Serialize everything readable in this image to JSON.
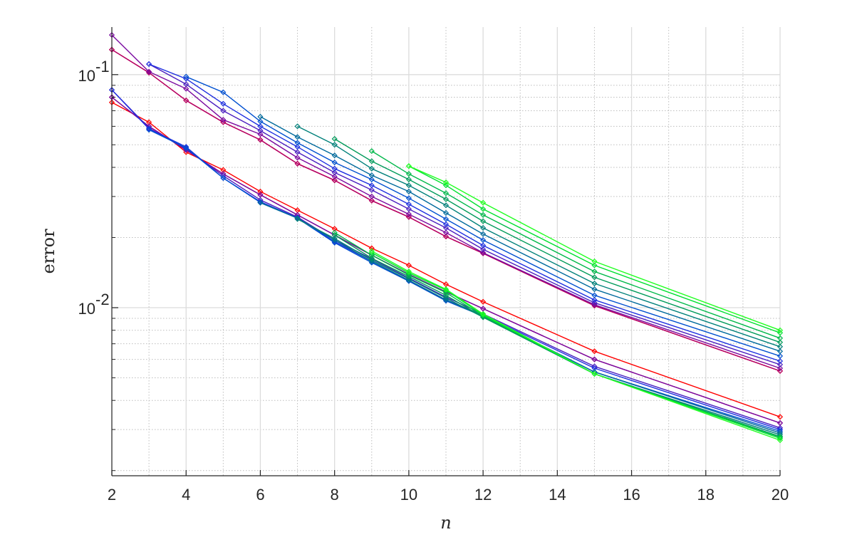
{
  "chart_data": {
    "type": "line",
    "xlabel": "n",
    "ylabel": "error",
    "y_scale": "log",
    "xlim": [
      2,
      20
    ],
    "ylim": [
      0.0019,
      0.16
    ],
    "grid": true,
    "minor_grid": true,
    "xticks": [
      2,
      4,
      6,
      8,
      10,
      12,
      14,
      16,
      18,
      20
    ],
    "xtick_labels": [
      "2",
      "4",
      "6",
      "8",
      "10",
      "12",
      "14",
      "16",
      "18",
      "20"
    ],
    "yticks": [
      {
        "value": 0.1,
        "base": "10",
        "exp": "-1"
      },
      {
        "value": 0.01,
        "base": "10",
        "exp": "-2"
      }
    ],
    "marker": "diamond",
    "series": [
      {
        "group": "upper",
        "color": "#ff0000",
        "x": [
          2,
          3,
          4,
          5,
          6,
          7,
          8,
          9,
          10,
          11,
          12,
          15,
          20
        ],
        "values": [
          0.128,
          0.102,
          0.0775,
          0.0625,
          0.0525,
          0.0415,
          0.0352,
          0.0288,
          0.0245,
          0.0202,
          0.0171,
          0.0102,
          0.00535
        ]
      },
      {
        "group": "upper",
        "color": "#b0006a",
        "x": [
          2,
          3,
          4,
          5,
          6,
          7,
          8,
          9,
          10,
          11,
          12,
          15,
          20
        ],
        "values": [
          0.128,
          0.102,
          0.0775,
          0.0625,
          0.0525,
          0.0415,
          0.0352,
          0.0288,
          0.0245,
          0.0202,
          0.0171,
          0.0102,
          0.00535
        ]
      },
      {
        "group": "upper",
        "color": "#7a0aa0",
        "x": [
          2,
          3,
          4,
          5,
          6,
          7,
          8,
          9,
          10,
          11,
          12,
          15,
          20
        ],
        "values": [
          0.148,
          0.103,
          0.087,
          0.064,
          0.0555,
          0.044,
          0.0365,
          0.03,
          0.0252,
          0.021,
          0.0172,
          0.0103,
          0.0055
        ]
      },
      {
        "group": "upper",
        "color": "#4b1fc0",
        "x": [
          3,
          4,
          5,
          6,
          7,
          8,
          9,
          10,
          11,
          12,
          15,
          20
        ],
        "values": [
          0.111,
          0.091,
          0.07,
          0.0575,
          0.0465,
          0.038,
          0.032,
          0.0265,
          0.022,
          0.0178,
          0.0105,
          0.0057
        ]
      },
      {
        "group": "upper",
        "color": "#1f30e0",
        "x": [
          3,
          4,
          5,
          6,
          7,
          8,
          9,
          10,
          11,
          12,
          15,
          20
        ],
        "values": [
          0.111,
          0.096,
          0.075,
          0.06,
          0.049,
          0.0395,
          0.0335,
          0.0278,
          0.0228,
          0.0185,
          0.0108,
          0.0059
        ]
      },
      {
        "group": "upper",
        "color": "#0050d0",
        "x": [
          4,
          5,
          6,
          7,
          8,
          9,
          10,
          11,
          12,
          15,
          20
        ],
        "values": [
          0.098,
          0.084,
          0.063,
          0.051,
          0.042,
          0.0355,
          0.0295,
          0.024,
          0.0195,
          0.0113,
          0.0062
        ]
      },
      {
        "group": "upper",
        "color": "#006a9c",
        "x": [
          6,
          7,
          8,
          9,
          10,
          11,
          12,
          15,
          20
        ],
        "values": [
          0.066,
          0.054,
          0.045,
          0.037,
          0.0315,
          0.0255,
          0.0207,
          0.012,
          0.0065
        ]
      },
      {
        "group": "upper",
        "color": "#00807a",
        "x": [
          7,
          8,
          9,
          10,
          11,
          12,
          15,
          20
        ],
        "values": [
          0.06,
          0.05,
          0.0395,
          0.0335,
          0.0275,
          0.022,
          0.0127,
          0.0068
        ]
      },
      {
        "group": "upper",
        "color": "#009a5a",
        "x": [
          8,
          9,
          10,
          11,
          12,
          15,
          20
        ],
        "values": [
          0.053,
          0.0425,
          0.0355,
          0.0292,
          0.0235,
          0.0135,
          0.0071
        ]
      },
      {
        "group": "upper",
        "color": "#00b84a",
        "x": [
          9,
          10,
          11,
          12,
          15,
          20
        ],
        "values": [
          0.047,
          0.0375,
          0.031,
          0.025,
          0.0143,
          0.0074
        ]
      },
      {
        "group": "upper",
        "color": "#00e030",
        "x": [
          10,
          11,
          12,
          15,
          20
        ],
        "values": [
          0.0405,
          0.0335,
          0.0265,
          0.0152,
          0.0078
        ]
      },
      {
        "group": "upper",
        "color": "#22ff22",
        "x": [
          10,
          11,
          12,
          15,
          20
        ],
        "values": [
          0.0405,
          0.0345,
          0.0282,
          0.0158,
          0.008
        ]
      },
      {
        "group": "lower",
        "color": "#ff0000",
        "x": [
          2,
          3,
          4,
          5,
          6,
          7,
          8,
          9,
          10,
          11,
          12,
          15,
          20
        ],
        "values": [
          0.076,
          0.0625,
          0.0465,
          0.039,
          0.0315,
          0.0262,
          0.0218,
          0.018,
          0.0152,
          0.0126,
          0.0106,
          0.0065,
          0.0034
        ]
      },
      {
        "group": "lower",
        "color": "#b0006a",
        "x": [
          2,
          3,
          4,
          5,
          6,
          7,
          8,
          9,
          10,
          11,
          12,
          15,
          20
        ],
        "values": [
          0.08,
          0.06,
          0.0475,
          0.0375,
          0.0305,
          0.025,
          0.0205,
          0.0168,
          0.0139,
          0.0117,
          0.0099,
          0.006,
          0.0032
        ]
      },
      {
        "group": "lower",
        "color": "#7a0aa0",
        "x": [
          2,
          3,
          4,
          5,
          6,
          7,
          8,
          9,
          10,
          11,
          12,
          15,
          20
        ],
        "values": [
          0.08,
          0.06,
          0.0475,
          0.0375,
          0.0305,
          0.025,
          0.0205,
          0.0168,
          0.0139,
          0.0117,
          0.0099,
          0.006,
          0.0032
        ]
      },
      {
        "group": "lower",
        "color": "#4b1fc0",
        "x": [
          2,
          3,
          4,
          5,
          6,
          7,
          8,
          9,
          10,
          11,
          12,
          15,
          20
        ],
        "values": [
          0.086,
          0.059,
          0.048,
          0.0368,
          0.029,
          0.0245,
          0.0195,
          0.0162,
          0.0134,
          0.0111,
          0.0094,
          0.0056,
          0.00305
        ]
      },
      {
        "group": "lower",
        "color": "#1f30e0",
        "x": [
          2,
          3,
          4,
          5,
          6,
          7,
          8,
          9,
          10,
          11,
          12,
          15,
          20
        ],
        "values": [
          0.086,
          0.0585,
          0.049,
          0.036,
          0.0285,
          0.0243,
          0.0192,
          0.0158,
          0.0131,
          0.0108,
          0.0093,
          0.0055,
          0.003
        ]
      },
      {
        "group": "lower",
        "color": "#0050d0",
        "x": [
          3,
          4,
          5,
          6,
          7,
          8,
          9,
          10,
          11,
          12,
          15,
          20
        ],
        "values": [
          0.058,
          0.0485,
          0.036,
          0.0283,
          0.0242,
          0.019,
          0.0156,
          0.013,
          0.0107,
          0.0092,
          0.0053,
          0.00295
        ]
      },
      {
        "group": "lower",
        "color": "#006a9c",
        "x": [
          6,
          7,
          8,
          9,
          10,
          11,
          12,
          15,
          20
        ],
        "values": [
          0.0282,
          0.0242,
          0.0195,
          0.0158,
          0.0131,
          0.0108,
          0.0092,
          0.0053,
          0.0029
        ]
      },
      {
        "group": "lower",
        "color": "#00807a",
        "x": [
          7,
          8,
          9,
          10,
          11,
          12,
          15,
          20
        ],
        "values": [
          0.024,
          0.0198,
          0.016,
          0.0133,
          0.011,
          0.0091,
          0.0052,
          0.00285
        ]
      },
      {
        "group": "lower",
        "color": "#009a5a",
        "x": [
          8,
          9,
          10,
          11,
          12,
          15,
          20
        ],
        "values": [
          0.0205,
          0.0163,
          0.0136,
          0.0113,
          0.0091,
          0.0052,
          0.0028
        ]
      },
      {
        "group": "lower",
        "color": "#00b84a",
        "x": [
          8,
          9,
          10,
          11,
          12,
          15,
          20
        ],
        "values": [
          0.021,
          0.0168,
          0.0138,
          0.0116,
          0.0092,
          0.0052,
          0.00278
        ]
      },
      {
        "group": "lower",
        "color": "#00e030",
        "x": [
          9,
          10,
          11,
          12,
          15,
          20
        ],
        "values": [
          0.0172,
          0.0141,
          0.0119,
          0.0093,
          0.0052,
          0.00275
        ]
      },
      {
        "group": "lower",
        "color": "#22ff22",
        "x": [
          9,
          10,
          11,
          12,
          15,
          20
        ],
        "values": [
          0.0175,
          0.0143,
          0.012,
          0.0094,
          0.0052,
          0.0027
        ]
      }
    ]
  }
}
